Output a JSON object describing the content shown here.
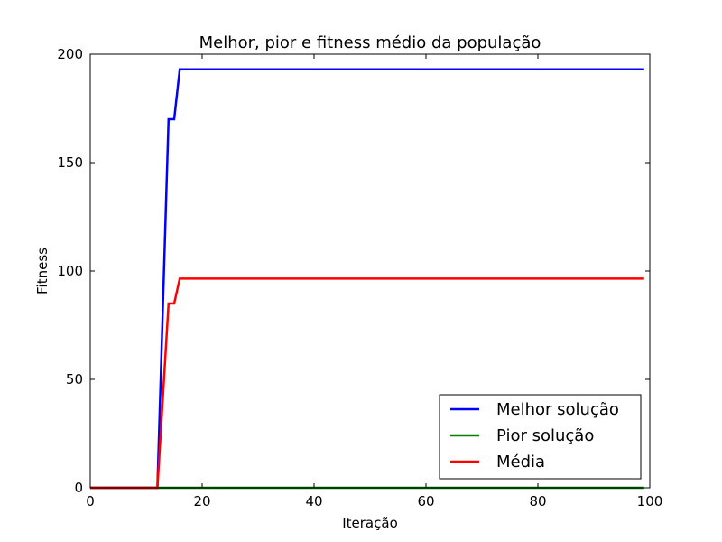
{
  "chart_data": {
    "type": "line",
    "title": "Melhor, pior e fitness médio da população",
    "xlabel": "Iteração",
    "ylabel": "Fitness",
    "xlim": [
      0,
      100
    ],
    "ylim": [
      0,
      200
    ],
    "xticks": [
      0,
      20,
      40,
      60,
      80,
      100
    ],
    "yticks": [
      0,
      50,
      100,
      150,
      200
    ],
    "grid": false,
    "legend_position": "lower right",
    "series": [
      {
        "name": "Melhor solução",
        "color": "#0000ff",
        "x": [
          0,
          12,
          13,
          14,
          15,
          16,
          99
        ],
        "y": [
          0,
          0,
          85,
          170,
          170,
          193,
          193
        ]
      },
      {
        "name": "Pior solução",
        "color": "#008000",
        "x": [
          0,
          99
        ],
        "y": [
          0,
          0
        ]
      },
      {
        "name": "Média",
        "color": "#ff0000",
        "x": [
          0,
          12,
          13,
          14,
          15,
          16,
          99
        ],
        "y": [
          0,
          0,
          42.5,
          85,
          85,
          96.5,
          96.5
        ]
      }
    ]
  }
}
